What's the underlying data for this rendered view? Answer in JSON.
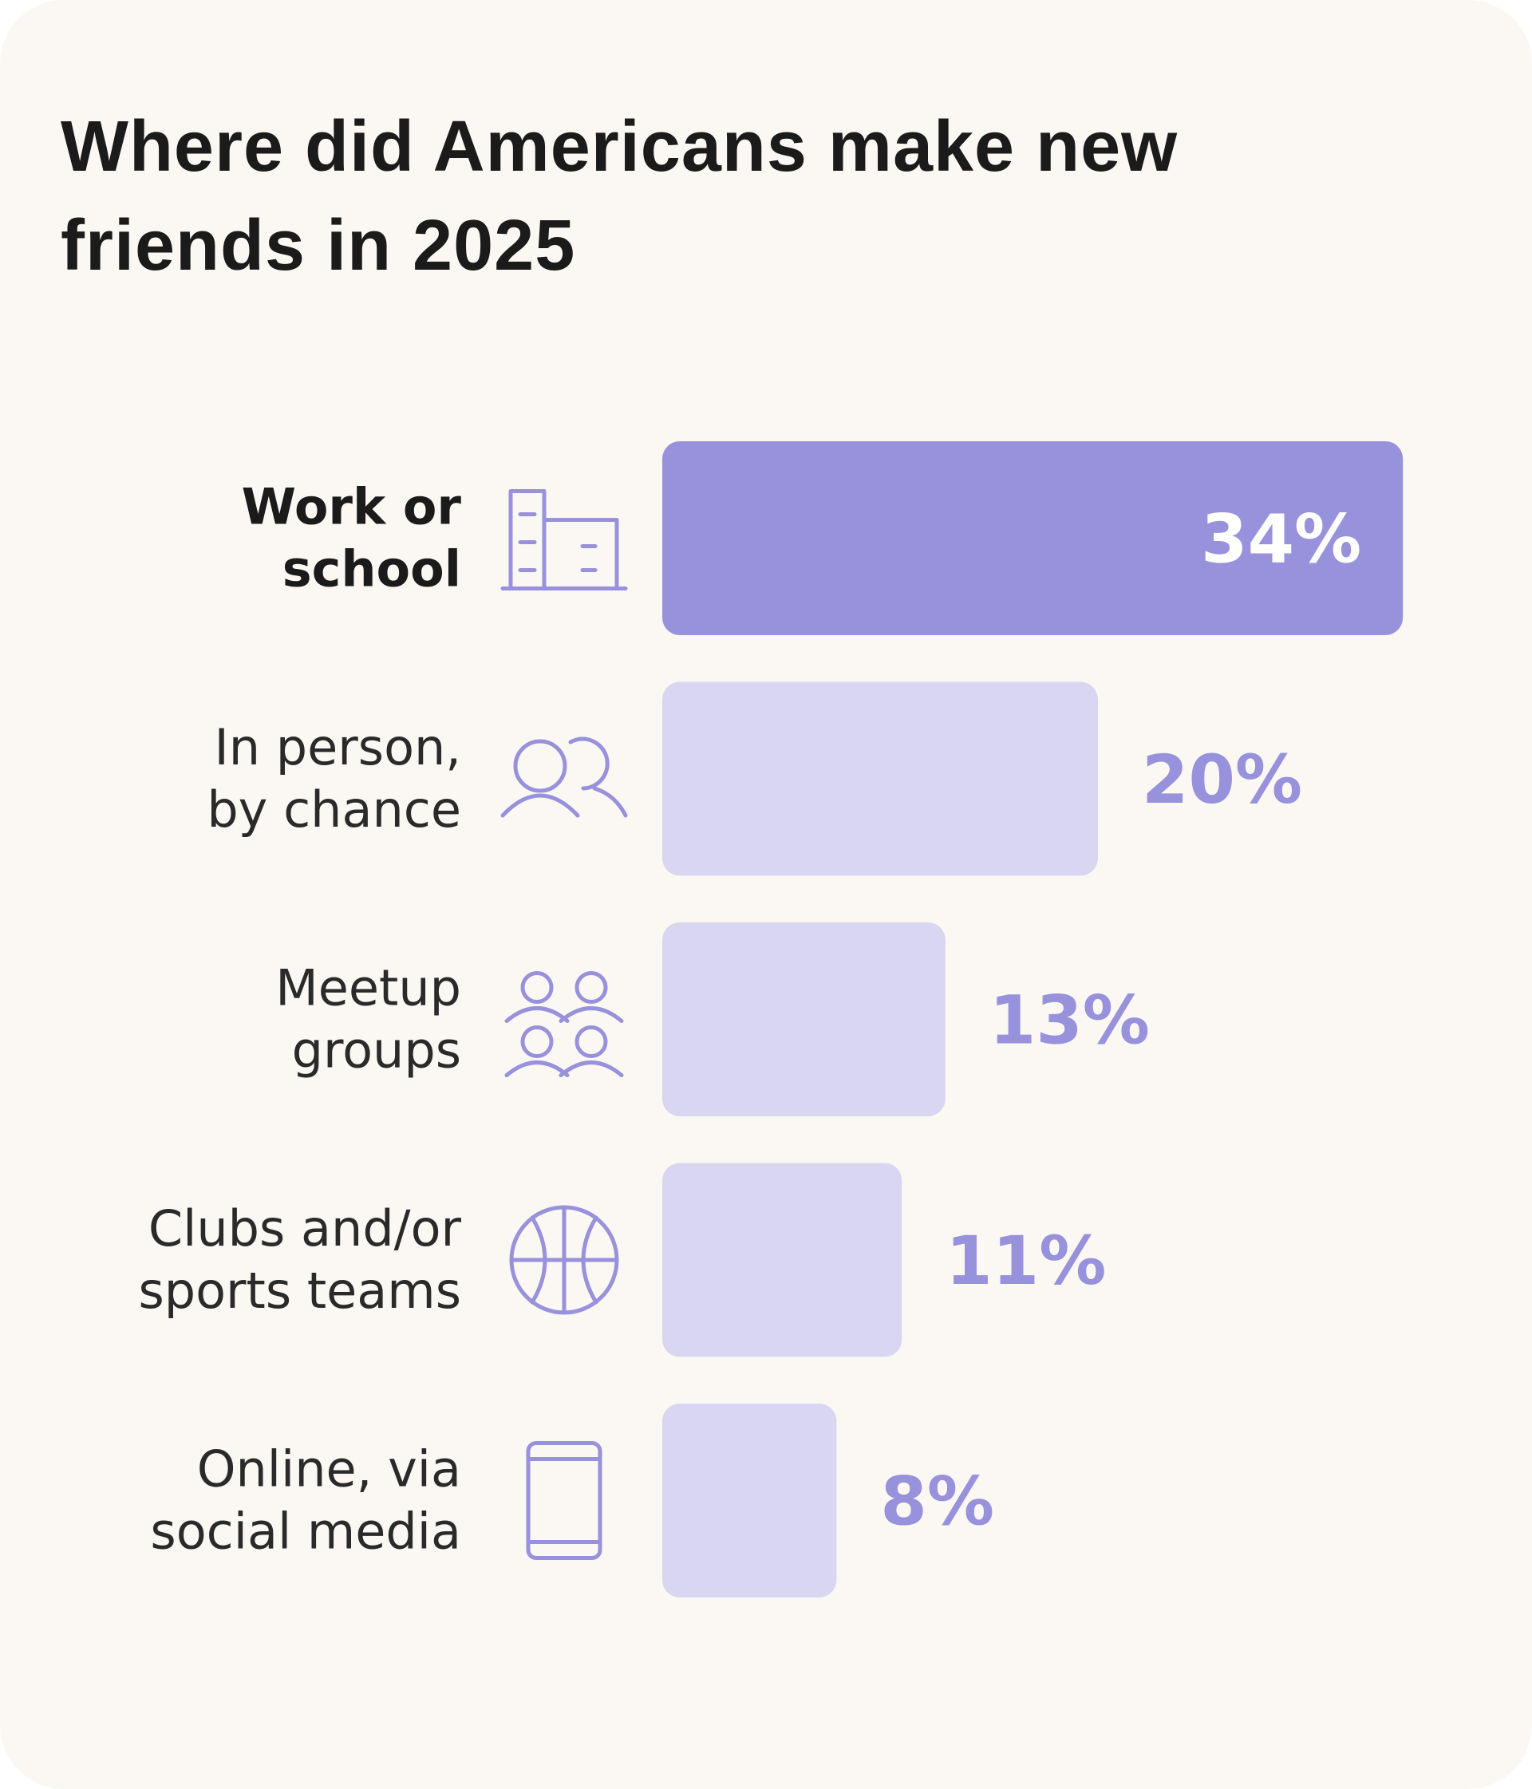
{
  "title": "Where did Americans make new friends in 2025",
  "colors": {
    "background": "#fbf8f4",
    "highlight_bar": "#9891dc",
    "bar": "#d9d6f2",
    "value_text": "#9891dc",
    "highlight_value_text": "#ffffff",
    "icon": "#9891dc"
  },
  "chart_data": {
    "type": "bar",
    "orientation": "horizontal",
    "title": "Where did Americans make new friends in 2025",
    "categories": [
      "Work or school",
      "In person, by chance",
      "Meetup groups",
      "Clubs and/or sports teams",
      "Online, via social media"
    ],
    "category_lines": [
      [
        "Work or",
        "school"
      ],
      [
        "In person,",
        "by chance"
      ],
      [
        "Meetup",
        "groups"
      ],
      [
        "Clubs and/or",
        "sports teams"
      ],
      [
        "Online, via",
        "social media"
      ]
    ],
    "values": [
      34,
      20,
      13,
      11,
      8
    ],
    "value_labels": [
      "34%",
      "20%",
      "13%",
      "11%",
      "8%"
    ],
    "icons": [
      "building-icon",
      "two-people-icon",
      "group-icon",
      "basketball-icon",
      "phone-icon"
    ],
    "highlighted_index": 0,
    "unit": "%",
    "xlabel": "",
    "ylabel": "",
    "grid": false,
    "legend": "none"
  }
}
